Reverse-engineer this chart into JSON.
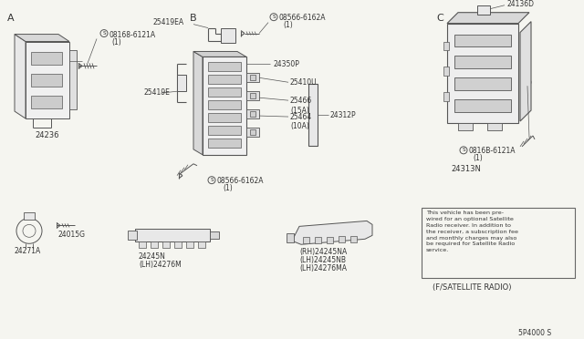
{
  "bg_color": "#f5f5f0",
  "line_color": "#888888",
  "dark_color": "#555555",
  "text_color": "#333333",
  "section_A": "A",
  "section_B": "B",
  "section_C": "C",
  "lbl_24236": "24236",
  "lbl_08168": "ゃ08168-6121A\n（1）",
  "lbl_08168_plain": "S 08168-6121A\n(1)",
  "lbl_25419EA": "25419EA",
  "lbl_08566_top": "S 08566-6162A\n(1)",
  "lbl_24350P": "24350P",
  "lbl_25419E": "25419E",
  "lbl_25410U": "25410U",
  "lbl_24312P": "24312P",
  "lbl_25466": "25466\n(15A)",
  "lbl_25464": "25464\n(10A)",
  "lbl_08566_bot": "S 08566-6162A\n(1)",
  "lbl_24271A": "24271A",
  "lbl_24015G": "24015G",
  "lbl_24245N": "24245N",
  "lbl_24276M": "(LH)24276M",
  "lbl_rh_24245NA": "(RH)24245NA",
  "lbl_lh_24245NB": "(LH)24245NB",
  "lbl_lh_24276MA": "(LH)24276MA",
  "lbl_24136D": "24136D",
  "lbl_0816B": "S 0816B-6121A\n(1)",
  "lbl_24313N": "24313N",
  "satellite_note": "This vehicle has been pre-\nwired for an optional Satellite\nRadio receiver. In addition to\nthe receiver, a subscription fee\nand monthly charges may also\nbe required for Satellite Radio\nservice.",
  "satellite_label": "(F/SATELLITE RADIO)",
  "diagram_num": "5P4000 S"
}
